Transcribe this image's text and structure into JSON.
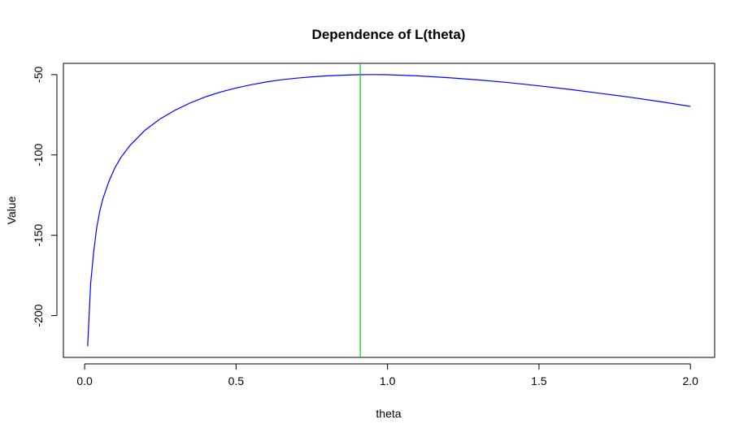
{
  "chart_data": {
    "type": "line",
    "title": "Dependence of L(theta)",
    "xlabel": "theta",
    "ylabel": "Value",
    "xlim": [
      -0.07,
      2.08
    ],
    "ylim": [
      -226,
      -43
    ],
    "x_ticks": [
      0.0,
      0.5,
      1.0,
      1.5,
      2.0
    ],
    "x_tick_labels": [
      "0.0",
      "0.5",
      "1.0",
      "1.5",
      "2.0"
    ],
    "y_ticks": [
      -200,
      -150,
      -100,
      -50
    ],
    "y_tick_labels": [
      "-200",
      "-150",
      "-100",
      "-50"
    ],
    "grid": false,
    "legend": "none",
    "series": [
      {
        "color": "#0000ff",
        "x": [
          0.01,
          0.02,
          0.03,
          0.04,
          0.05,
          0.06,
          0.08,
          0.1,
          0.12,
          0.15,
          0.2,
          0.25,
          0.3,
          0.35,
          0.4,
          0.45,
          0.5,
          0.55,
          0.6,
          0.65,
          0.7,
          0.75,
          0.8,
          0.85,
          0.9,
          0.95,
          1.0,
          1.1,
          1.2,
          1.3,
          1.4,
          1.5,
          1.6,
          1.7,
          1.8,
          1.9,
          2.0
        ],
        "y": [
          -219.0,
          -180.0,
          -160.0,
          -145.0,
          -135.0,
          -127.5,
          -116.5,
          -108.0,
          -101.5,
          -94.0,
          -84.5,
          -77.5,
          -72.0,
          -67.5,
          -63.8,
          -60.8,
          -58.3,
          -56.3,
          -54.6,
          -53.2,
          -52.2,
          -51.4,
          -50.8,
          -50.4,
          -50.1,
          -50.0,
          -50.1,
          -50.8,
          -51.9,
          -53.3,
          -55.0,
          -57.0,
          -59.2,
          -61.6,
          -64.1,
          -66.8,
          -69.8
        ]
      }
    ],
    "vline": {
      "x": 0.91,
      "color": "#00cc00"
    }
  }
}
